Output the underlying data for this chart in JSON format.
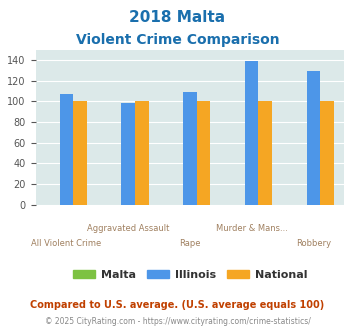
{
  "title_line1": "2018 Malta",
  "title_line2": "Violent Crime Comparison",
  "categories": [
    "All Violent Crime",
    "Aggravated Assault",
    "Rape",
    "Murder & Mans...",
    "Robbery"
  ],
  "series": {
    "Malta": [
      0,
      0,
      0,
      0,
      0
    ],
    "Illinois": [
      107,
      98,
      109,
      139,
      129
    ],
    "National": [
      100,
      100,
      100,
      100,
      100
    ]
  },
  "colors": {
    "Malta": "#7dc242",
    "Illinois": "#4d96e8",
    "National": "#f5a623"
  },
  "ylim": [
    0,
    150
  ],
  "yticks": [
    0,
    20,
    40,
    60,
    80,
    100,
    120,
    140
  ],
  "background_color": "#dce9e9",
  "title_color": "#1a6fad",
  "axis_label_color": "#a08060",
  "legend_label_color": "#333333",
  "footnote1": "Compared to U.S. average. (U.S. average equals 100)",
  "footnote2": "© 2025 CityRating.com - https://www.cityrating.com/crime-statistics/",
  "footnote1_color": "#c04000",
  "footnote2_color": "#888888",
  "row1_indices": [
    1,
    3
  ],
  "row2_indices": [
    0,
    2,
    4
  ],
  "row1_labels": [
    "Aggravated Assault",
    "Murder & Mans..."
  ],
  "row2_labels": [
    "All Violent Crime",
    "Rape",
    "Robbery"
  ]
}
